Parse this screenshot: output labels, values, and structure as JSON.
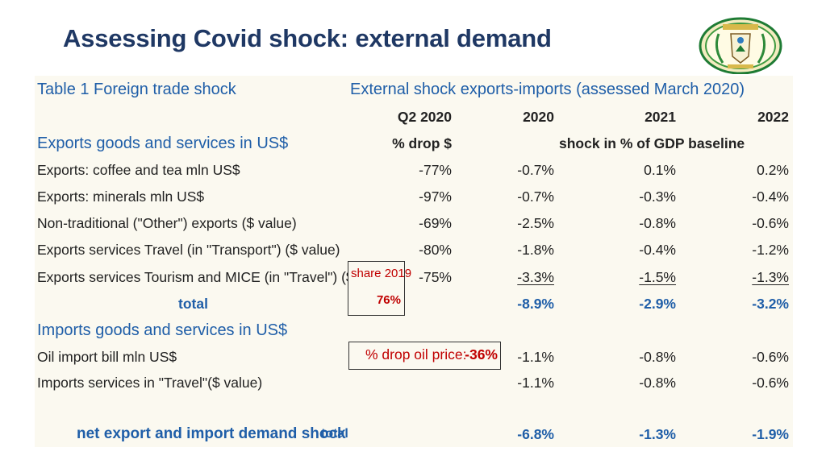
{
  "slide": {
    "title": "Assessing Covid shock: external demand",
    "seal_name": "coat-of-arms-seal"
  },
  "table": {
    "table_title": "Table 1 Foreign trade shock",
    "external_header": "External shock exports-imports (assessed March 2020)",
    "columns": [
      "Q2  2020",
      "2020",
      "2021",
      "2022"
    ],
    "exports_section": "Exports goods and services in US$",
    "sub_q2": "% drop $",
    "sub_years": "shock in % of GDP baseline",
    "export_rows": [
      {
        "label": "Exports: coffee and tea mln US$",
        "q2": "-77%",
        "y2020": "-0.7%",
        "y2021": "0.1%",
        "y2022": "0.2%"
      },
      {
        "label": "Exports: minerals mln US$",
        "q2": "-97%",
        "y2020": "-0.7%",
        "y2021": "-0.3%",
        "y2022": "-0.4%"
      },
      {
        "label": "Non-traditional (\"Other\") exports ($ value)",
        "q2": "-69%",
        "y2020": "-2.5%",
        "y2021": "-0.8%",
        "y2022": "-0.6%"
      },
      {
        "label": "Exports services Travel (in \"Transport\")  ($ value)",
        "q2": "-80%",
        "y2020": "-1.8%",
        "y2021": "-0.4%",
        "y2022": "-1.2%"
      },
      {
        "label": "Exports services Tourism and MICE (in \"Travel\") ($ value)",
        "q2": "-75%",
        "y2020": "-3.3%",
        "y2021": "-1.5%",
        "y2022": "-1.3%"
      }
    ],
    "share_label": "share 2019",
    "share_value": "76%",
    "exports_total": {
      "label": "total",
      "y2020": "-8.9%",
      "y2021": "-2.9%",
      "y2022": "-3.2%"
    },
    "imports_section": "Imports goods and services in US$",
    "oil_row": {
      "label": "Oil import bill mln US$",
      "drop_label": "% drop oil price:",
      "drop_value": "-36%",
      "y2020": "-1.1%",
      "y2021": "-0.8%",
      "y2022": "-0.6%"
    },
    "travel_import_row": {
      "label": "Imports services in \"Travel\"($ value)",
      "y2020": "-1.1%",
      "y2021": "-0.8%",
      "y2022": "-0.6%"
    },
    "net_total": {
      "label": "net export and import demand shock",
      "suffix": "total",
      "y2020": "-6.8%",
      "y2021": "-1.3%",
      "y2022": "-1.9%"
    }
  }
}
